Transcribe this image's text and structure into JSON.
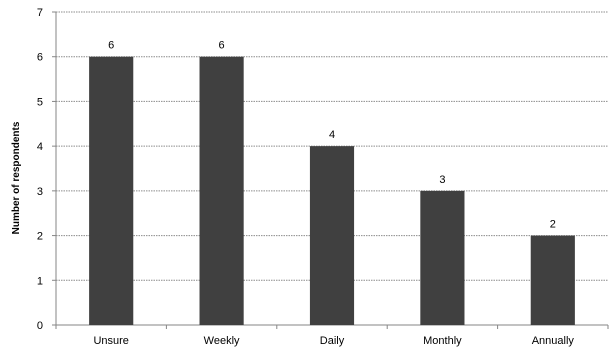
{
  "chart_data": {
    "type": "bar",
    "title": "",
    "xlabel": "",
    "ylabel": "Number of respondents",
    "categories": [
      "Unsure",
      "Weekly",
      "Daily",
      "Monthly",
      "Annually"
    ],
    "values": [
      6,
      6,
      4,
      3,
      2
    ],
    "data_labels": [
      "6",
      "6",
      "4",
      "3",
      "2"
    ],
    "ylim": [
      0,
      7
    ],
    "yticks": [
      "0",
      "1",
      "2",
      "3",
      "4",
      "5",
      "6",
      "7"
    ],
    "grid": true,
    "legend": "none",
    "colors": {
      "bar": "#404040",
      "grid": "#8c8c8c",
      "axis": "#868686"
    }
  }
}
